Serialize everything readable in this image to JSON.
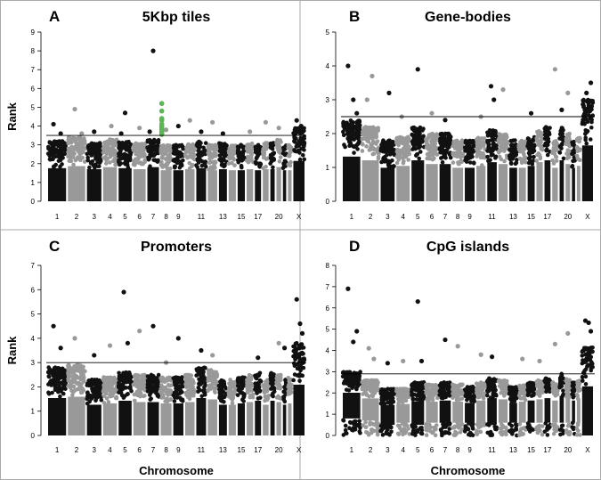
{
  "figure": {
    "y_axis_title": "Rank",
    "x_axis_title": "Chromosome",
    "border_color": "#aaaaaa",
    "colors": {
      "dark": "#111111",
      "grey": "#999999",
      "highlight": "#5ab552"
    }
  },
  "chart_data": [
    {
      "id": "A",
      "type": "scatter",
      "letter": "A",
      "title": "5Kbp tiles",
      "ylim": [
        0,
        9
      ],
      "yticks": [
        0,
        1,
        2,
        3,
        4,
        5,
        6,
        7,
        8,
        9
      ],
      "threshold": 3.5,
      "show_ylabel": true,
      "show_xlabel": false,
      "x_tick_labels": [
        "1",
        "2",
        "3",
        "4",
        "5",
        "6",
        "7",
        "8",
        "9",
        "11",
        "13",
        "15",
        "17",
        "20",
        "X"
      ],
      "chromosomes": [
        "1",
        "2",
        "3",
        "4",
        "5",
        "6",
        "7",
        "8",
        "9",
        "10",
        "11",
        "12",
        "13",
        "14",
        "15",
        "16",
        "17",
        "18",
        "19",
        "20",
        "21",
        "22",
        "X"
      ],
      "band_top": [
        3.2,
        3.4,
        3.1,
        3.3,
        3.2,
        3.1,
        3.3,
        3.0,
        3.0,
        3.1,
        3.2,
        3.0,
        3.1,
        3.0,
        3.0,
        3.1,
        3.0,
        3.1,
        3.1,
        3.3,
        3.0,
        3.0,
        3.9
      ],
      "band_floor": [
        0,
        0,
        0,
        0,
        0,
        0,
        0,
        0,
        0,
        0,
        0,
        0,
        0,
        0,
        0,
        0,
        0,
        0,
        0,
        0,
        0,
        0,
        0
      ],
      "outliers": [
        {
          "chr": "1",
          "pos": 0.3,
          "y": 4.1
        },
        {
          "chr": "1",
          "pos": 0.7,
          "y": 3.6
        },
        {
          "chr": "2",
          "pos": 0.4,
          "y": 4.9
        },
        {
          "chr": "2",
          "pos": 0.8,
          "y": 3.6
        },
        {
          "chr": "3",
          "pos": 0.5,
          "y": 3.7
        },
        {
          "chr": "4",
          "pos": 0.6,
          "y": 4.0
        },
        {
          "chr": "5",
          "pos": 0.5,
          "y": 4.7
        },
        {
          "chr": "5",
          "pos": 0.2,
          "y": 3.6
        },
        {
          "chr": "6",
          "pos": 0.5,
          "y": 3.9
        },
        {
          "chr": "7",
          "pos": 0.5,
          "y": 8.0
        },
        {
          "chr": "7",
          "pos": 0.2,
          "y": 3.7
        },
        {
          "chr": "8",
          "pos": 0.5,
          "y": 3.8
        },
        {
          "chr": "9",
          "pos": 0.5,
          "y": 4.0
        },
        {
          "chr": "10",
          "pos": 0.5,
          "y": 4.3
        },
        {
          "chr": "11",
          "pos": 0.5,
          "y": 3.7
        },
        {
          "chr": "12",
          "pos": 0.5,
          "y": 4.2
        },
        {
          "chr": "13",
          "pos": 0.5,
          "y": 3.6
        },
        {
          "chr": "16",
          "pos": 0.5,
          "y": 3.7
        },
        {
          "chr": "18",
          "pos": 0.5,
          "y": 4.2
        },
        {
          "chr": "20",
          "pos": 0.5,
          "y": 3.9
        },
        {
          "chr": "X",
          "pos": 0.3,
          "y": 4.3
        },
        {
          "chr": "X",
          "pos": 0.7,
          "y": 4.0
        }
      ],
      "highlight": {
        "chr": "8",
        "pos": 0.1,
        "values": [
          5.2,
          4.8,
          4.4,
          4.3,
          4.1,
          4.0,
          3.9,
          3.8,
          3.7,
          3.6,
          3.55
        ]
      }
    },
    {
      "id": "B",
      "type": "scatter",
      "letter": "B",
      "title": "Gene-bodies",
      "ylim": [
        0,
        5
      ],
      "yticks": [
        0,
        1,
        2,
        3,
        4,
        5
      ],
      "threshold": 2.5,
      "show_ylabel": false,
      "show_xlabel": false,
      "x_tick_labels": [
        "1",
        "2",
        "3",
        "4",
        "5",
        "6",
        "7",
        "8",
        "9",
        "11",
        "13",
        "15",
        "17",
        "20",
        "X"
      ],
      "chromosomes": [
        "1",
        "2",
        "3",
        "4",
        "5",
        "6",
        "7",
        "8",
        "9",
        "10",
        "11",
        "12",
        "13",
        "14",
        "15",
        "16",
        "17",
        "18",
        "19",
        "20",
        "21",
        "22",
        "X"
      ],
      "band_top": [
        2.4,
        2.2,
        1.8,
        1.9,
        2.2,
        2.0,
        2.0,
        1.8,
        1.8,
        1.9,
        2.1,
        2.0,
        1.8,
        1.8,
        1.9,
        2.1,
        2.2,
        1.8,
        2.2,
        2.0,
        1.8,
        1.9,
        3.0
      ],
      "band_floor": [
        0,
        0,
        0,
        0,
        0,
        0,
        0,
        0,
        0,
        0,
        0,
        0,
        0,
        0,
        0,
        0,
        0,
        0,
        0,
        0,
        0,
        0,
        0
      ],
      "outliers": [
        {
          "chr": "1",
          "pos": 0.3,
          "y": 4.0
        },
        {
          "chr": "1",
          "pos": 0.6,
          "y": 3.0
        },
        {
          "chr": "1",
          "pos": 0.8,
          "y": 2.6
        },
        {
          "chr": "2",
          "pos": 0.3,
          "y": 3.0
        },
        {
          "chr": "2",
          "pos": 0.6,
          "y": 3.7
        },
        {
          "chr": "3",
          "pos": 0.6,
          "y": 3.2
        },
        {
          "chr": "4",
          "pos": 0.4,
          "y": 2.5
        },
        {
          "chr": "5",
          "pos": 0.5,
          "y": 3.9
        },
        {
          "chr": "6",
          "pos": 0.5,
          "y": 2.6
        },
        {
          "chr": "7",
          "pos": 0.5,
          "y": 2.4
        },
        {
          "chr": "10",
          "pos": 0.5,
          "y": 2.5
        },
        {
          "chr": "11",
          "pos": 0.4,
          "y": 3.4
        },
        {
          "chr": "11",
          "pos": 0.7,
          "y": 3.0
        },
        {
          "chr": "12",
          "pos": 0.5,
          "y": 3.3
        },
        {
          "chr": "15",
          "pos": 0.5,
          "y": 2.6
        },
        {
          "chr": "18",
          "pos": 0.5,
          "y": 3.9
        },
        {
          "chr": "19",
          "pos": 0.5,
          "y": 2.7
        },
        {
          "chr": "20",
          "pos": 0.5,
          "y": 3.2
        },
        {
          "chr": "X",
          "pos": 0.4,
          "y": 3.2
        },
        {
          "chr": "X",
          "pos": 0.8,
          "y": 3.5
        }
      ]
    },
    {
      "id": "C",
      "type": "scatter",
      "letter": "C",
      "title": "Promoters",
      "ylim": [
        0,
        7
      ],
      "yticks": [
        0,
        1,
        2,
        3,
        4,
        5,
        6,
        7
      ],
      "threshold": 3.0,
      "show_ylabel": true,
      "show_xlabel": true,
      "x_tick_labels": [
        "1",
        "2",
        "3",
        "4",
        "5",
        "6",
        "7",
        "8",
        "9",
        "11",
        "13",
        "15",
        "17",
        "20",
        "X"
      ],
      "chromosomes": [
        "1",
        "2",
        "3",
        "4",
        "5",
        "6",
        "7",
        "8",
        "9",
        "10",
        "11",
        "12",
        "13",
        "14",
        "15",
        "16",
        "17",
        "18",
        "19",
        "20",
        "21",
        "22",
        "X"
      ],
      "band_top": [
        2.8,
        2.9,
        2.3,
        2.4,
        2.6,
        2.5,
        2.5,
        2.4,
        2.4,
        2.5,
        2.8,
        2.7,
        2.3,
        2.3,
        2.4,
        2.5,
        2.6,
        2.3,
        2.6,
        2.5,
        2.3,
        2.4,
        3.8
      ],
      "band_floor": [
        0,
        0,
        0,
        0,
        0,
        0,
        0,
        0,
        0,
        0,
        0,
        0,
        0,
        0,
        0,
        0,
        0,
        0,
        0,
        0,
        0,
        0,
        0
      ],
      "outliers": [
        {
          "chr": "1",
          "pos": 0.3,
          "y": 4.5
        },
        {
          "chr": "1",
          "pos": 0.7,
          "y": 3.6
        },
        {
          "chr": "2",
          "pos": 0.4,
          "y": 4.0
        },
        {
          "chr": "3",
          "pos": 0.5,
          "y": 3.3
        },
        {
          "chr": "4",
          "pos": 0.5,
          "y": 3.7
        },
        {
          "chr": "5",
          "pos": 0.4,
          "y": 5.9
        },
        {
          "chr": "5",
          "pos": 0.7,
          "y": 3.8
        },
        {
          "chr": "6",
          "pos": 0.5,
          "y": 4.3
        },
        {
          "chr": "7",
          "pos": 0.5,
          "y": 4.5
        },
        {
          "chr": "8",
          "pos": 0.5,
          "y": 3.0
        },
        {
          "chr": "9",
          "pos": 0.5,
          "y": 4.0
        },
        {
          "chr": "11",
          "pos": 0.5,
          "y": 3.5
        },
        {
          "chr": "12",
          "pos": 0.5,
          "y": 3.3
        },
        {
          "chr": "17",
          "pos": 0.5,
          "y": 3.2
        },
        {
          "chr": "20",
          "pos": 0.5,
          "y": 3.8
        },
        {
          "chr": "21",
          "pos": 0.5,
          "y": 3.6
        },
        {
          "chr": "X",
          "pos": 0.3,
          "y": 5.6
        },
        {
          "chr": "X",
          "pos": 0.6,
          "y": 4.6
        },
        {
          "chr": "X",
          "pos": 0.8,
          "y": 4.2
        }
      ]
    },
    {
      "id": "D",
      "type": "scatter",
      "letter": "D",
      "title": "CpG islands",
      "ylim": [
        0,
        8
      ],
      "yticks": [
        0,
        1,
        2,
        3,
        4,
        5,
        6,
        7,
        8
      ],
      "threshold": 2.9,
      "show_ylabel": false,
      "show_xlabel": true,
      "x_tick_labels": [
        "1",
        "2",
        "3",
        "4",
        "5",
        "6",
        "7",
        "8",
        "9",
        "11",
        "13",
        "15",
        "17",
        "20",
        "X"
      ],
      "chromosomes": [
        "1",
        "2",
        "3",
        "4",
        "5",
        "6",
        "7",
        "8",
        "9",
        "10",
        "11",
        "12",
        "13",
        "14",
        "15",
        "16",
        "17",
        "18",
        "19",
        "20",
        "21",
        "22",
        "X"
      ],
      "band_top": [
        3.0,
        2.6,
        2.2,
        2.2,
        2.5,
        2.4,
        2.5,
        2.4,
        2.3,
        2.5,
        2.7,
        2.6,
        2.3,
        2.4,
        2.5,
        2.6,
        2.7,
        2.5,
        2.9,
        2.7,
        2.5,
        2.6,
        4.2
      ],
      "band_floor": [
        0.8,
        0.7,
        0.5,
        0.6,
        0.5,
        0.6,
        0.6,
        0.6,
        0.6,
        0.6,
        0.6,
        0.6,
        0.6,
        0.6,
        0.6,
        0.6,
        0.6,
        0.6,
        0.6,
        0.6,
        0.6,
        0.6,
        0.0
      ],
      "outliers": [
        {
          "chr": "1",
          "pos": 0.3,
          "y": 6.9
        },
        {
          "chr": "1",
          "pos": 0.8,
          "y": 4.9
        },
        {
          "chr": "1",
          "pos": 0.6,
          "y": 4.4
        },
        {
          "chr": "2",
          "pos": 0.4,
          "y": 4.1
        },
        {
          "chr": "2",
          "pos": 0.7,
          "y": 3.6
        },
        {
          "chr": "3",
          "pos": 0.5,
          "y": 3.4
        },
        {
          "chr": "4",
          "pos": 0.5,
          "y": 3.5
        },
        {
          "chr": "5",
          "pos": 0.5,
          "y": 6.3
        },
        {
          "chr": "5",
          "pos": 0.8,
          "y": 3.5
        },
        {
          "chr": "7",
          "pos": 0.5,
          "y": 4.5
        },
        {
          "chr": "8",
          "pos": 0.5,
          "y": 4.2
        },
        {
          "chr": "10",
          "pos": 0.5,
          "y": 3.8
        },
        {
          "chr": "11",
          "pos": 0.5,
          "y": 3.7
        },
        {
          "chr": "14",
          "pos": 0.5,
          "y": 3.6
        },
        {
          "chr": "16",
          "pos": 0.5,
          "y": 3.5
        },
        {
          "chr": "18",
          "pos": 0.5,
          "y": 4.3
        },
        {
          "chr": "20",
          "pos": 0.5,
          "y": 4.8
        },
        {
          "chr": "X",
          "pos": 0.3,
          "y": 5.4
        },
        {
          "chr": "X",
          "pos": 0.6,
          "y": 5.3
        },
        {
          "chr": "X",
          "pos": 0.8,
          "y": 4.9
        }
      ]
    }
  ]
}
